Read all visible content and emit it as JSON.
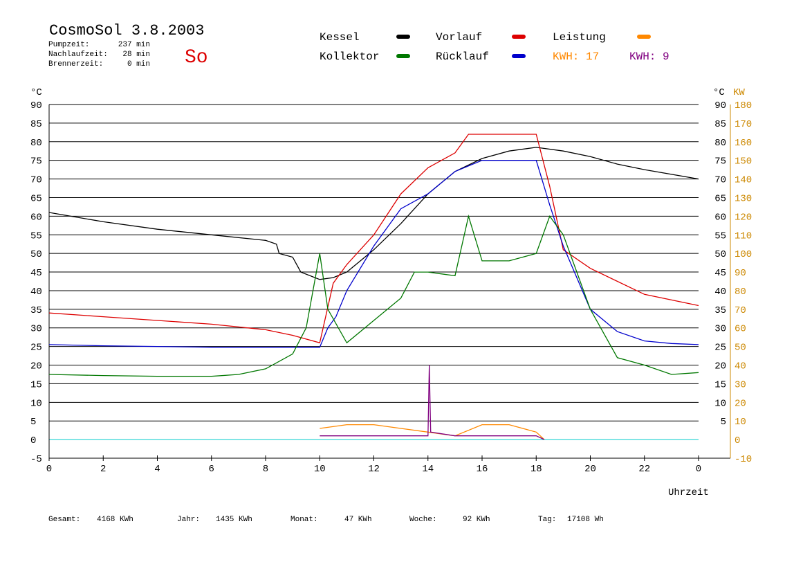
{
  "header": {
    "title": "CosmoSol 3.8.2003",
    "day": "So",
    "info": [
      {
        "label": "Pumpzeit:",
        "value": "237 min"
      },
      {
        "label": "Nachlaufzeit:",
        "value": "28 min"
      },
      {
        "label": "Brennerzeit:",
        "value": "0 min"
      }
    ]
  },
  "legend": {
    "kessel": "Kessel",
    "vorlauf": "Vorlauf",
    "leistung": "Leistung",
    "kollektor": "Kollektor",
    "ruecklauf": "Rücklauf",
    "kwh1": "KWH: 17",
    "kwh2": "KWH: 9"
  },
  "axes": {
    "left_unit": "°C",
    "right_unit_c": "°C",
    "right_unit_kw": "KW",
    "x_label": "Uhrzeit",
    "left_ticks": [
      "90",
      "85",
      "80",
      "75",
      "70",
      "65",
      "60",
      "55",
      "50",
      "45",
      "40",
      "35",
      "30",
      "25",
      "20",
      "15",
      "10",
      "5",
      "0",
      "-5"
    ],
    "right_c_ticks": [
      "90",
      "85",
      "80",
      "75",
      "70",
      "65",
      "60",
      "55",
      "50",
      "45",
      "40",
      "35",
      "30",
      "25",
      "20",
      "15",
      "10",
      "5"
    ],
    "right_kw_ticks": [
      "180",
      "170",
      "160",
      "150",
      "140",
      "130",
      "120",
      "110",
      "100",
      "90",
      "80",
      "70",
      "60",
      "50",
      "40",
      "30",
      "20",
      "10",
      "0",
      "-10"
    ],
    "x_ticks": [
      "0",
      "2",
      "4",
      "6",
      "8",
      "10",
      "12",
      "14",
      "16",
      "18",
      "20",
      "22",
      "0"
    ]
  },
  "footer": [
    {
      "label": "Gesamt:",
      "value": "4168 KWh"
    },
    {
      "label": "Jahr:",
      "value": "1435 KWh"
    },
    {
      "label": "Monat:",
      "value": "47 KWh"
    },
    {
      "label": "Woche:",
      "value": "92 KWh"
    },
    {
      "label": "Tag:",
      "value": "17108 Wh"
    }
  ],
  "colors": {
    "kessel": "#000000",
    "vorlauf": "#dd0000",
    "ruecklauf": "#0000cc",
    "kollektor": "#007700",
    "leistung": "#ff8800",
    "kwh2": "#800080",
    "baseline": "#00cccc"
  },
  "chart_data": {
    "type": "line",
    "xlabel": "Uhrzeit",
    "ylabel": "°C",
    "y2label": "KW",
    "xlim": [
      0,
      24
    ],
    "ylim": [
      -5,
      90
    ],
    "y2lim": [
      -10,
      180
    ],
    "grid": true,
    "series": [
      {
        "name": "Kessel",
        "axis": "left",
        "x": [
          0,
          2,
          4,
          6,
          8,
          8.4,
          8.5,
          9,
          9.3,
          10,
          10.5,
          11,
          12,
          13,
          14,
          15,
          16,
          17,
          18,
          19,
          20,
          21,
          22,
          24
        ],
        "y": [
          61,
          58.5,
          56.5,
          55,
          53.5,
          52.5,
          50,
          49,
          45,
          43,
          43.5,
          45,
          51,
          58,
          66,
          72,
          75.5,
          77.5,
          78.5,
          77.5,
          76,
          74,
          72.5,
          70
        ]
      },
      {
        "name": "Vorlauf",
        "axis": "left",
        "x": [
          0,
          2,
          4,
          6,
          8,
          9,
          10,
          10.5,
          11,
          12,
          13,
          14,
          15,
          15.5,
          16,
          17,
          18,
          18.5,
          19,
          20,
          22,
          24
        ],
        "y": [
          34,
          33,
          32,
          31,
          29.5,
          28,
          26,
          42,
          47,
          55,
          66,
          73,
          77,
          82,
          82,
          82,
          82,
          68,
          51,
          46,
          39,
          36
        ]
      },
      {
        "name": "Rücklauf",
        "axis": "left",
        "x": [
          0,
          2,
          4,
          6,
          8,
          9,
          10,
          10.3,
          10.6,
          11,
          12,
          13,
          14,
          15,
          16,
          17,
          18,
          18.5,
          19,
          20,
          21,
          22,
          23,
          24
        ],
        "y": [
          25.5,
          25.2,
          25,
          24.8,
          24.8,
          24.8,
          24.8,
          30,
          33,
          40,
          52,
          62,
          66,
          72,
          75,
          75,
          75,
          63,
          52,
          35,
          29,
          26.5,
          25.8,
          25.5
        ]
      },
      {
        "name": "Kollektor",
        "axis": "left",
        "x": [
          0,
          2,
          4,
          6,
          7,
          8,
          9,
          9.5,
          10,
          10.3,
          11,
          12,
          13,
          13.5,
          14,
          15,
          15.5,
          16,
          17,
          18,
          18.5,
          19,
          20,
          21,
          22,
          23,
          24
        ],
        "y": [
          17.5,
          17.2,
          17,
          17,
          17.5,
          19,
          23,
          30,
          50,
          35,
          26,
          32,
          38,
          45,
          45,
          44,
          60,
          48,
          48,
          50,
          60,
          55,
          35,
          22,
          20,
          17.5,
          18
        ]
      },
      {
        "name": "Leistung",
        "axis": "right",
        "x": [
          10,
          11,
          12,
          13,
          14,
          15,
          16,
          17,
          18,
          18.3
        ],
        "y": [
          6,
          8,
          8,
          6,
          4,
          2,
          8,
          8,
          4,
          0
        ]
      },
      {
        "name": "KWH 9",
        "axis": "right",
        "x": [
          10,
          12,
          14,
          14.05,
          14.1,
          15,
          16,
          18,
          18.3
        ],
        "y": [
          2,
          2,
          2,
          40,
          4,
          2,
          2,
          2,
          0
        ]
      }
    ]
  }
}
